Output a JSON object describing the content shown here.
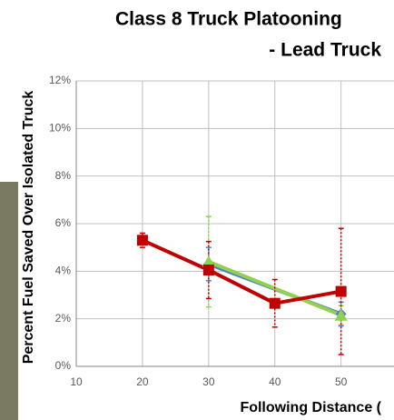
{
  "chart_data": {
    "type": "line",
    "title": "Class 8 Truck Platooning",
    "subtitle": "- Lead Truck",
    "x_label": "Following Distance (",
    "y_label": "Percent Fuel Saved Over Isolated Truck",
    "xlim": [
      10,
      58
    ],
    "xticks": [
      10,
      20,
      30,
      40,
      50
    ],
    "ylim": [
      0,
      12
    ],
    "yticks": [
      {
        "value": 0,
        "label": "0%"
      },
      {
        "value": 2,
        "label": "2%"
      },
      {
        "value": 4,
        "label": "4%"
      },
      {
        "value": 6,
        "label": "6%"
      },
      {
        "value": 8,
        "label": "8%"
      },
      {
        "value": 10,
        "label": "10%"
      },
      {
        "value": 12,
        "label": "12%"
      }
    ],
    "grid": true,
    "series": [
      {
        "color": "#4f81bd",
        "marker": "diamond",
        "x": [
          30,
          50
        ],
        "values": [
          4.3,
          2.2
        ],
        "errors": [
          0.7,
          0.5
        ]
      },
      {
        "color": "#92d050",
        "marker": "triangle",
        "x": [
          30,
          50
        ],
        "values": [
          4.4,
          2.15
        ],
        "errors": [
          1.9,
          0.4
        ]
      },
      {
        "color": "#c00000",
        "marker": "square",
        "x": [
          20,
          30,
          40,
          50
        ],
        "values": [
          5.3,
          4.05,
          2.65,
          3.15
        ],
        "errors": [
          0.3,
          1.2,
          1.0,
          2.65
        ]
      }
    ]
  }
}
